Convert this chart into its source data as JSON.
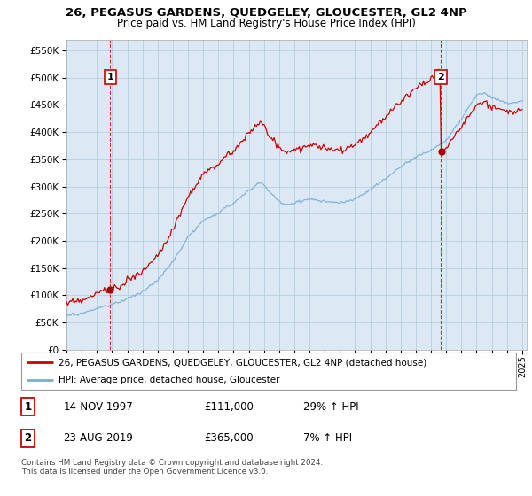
{
  "title": "26, PEGASUS GARDENS, QUEDGELEY, GLOUCESTER, GL2 4NP",
  "subtitle": "Price paid vs. HM Land Registry's House Price Index (HPI)",
  "legend_line1": "26, PEGASUS GARDENS, QUEDGELEY, GLOUCESTER, GL2 4NP (detached house)",
  "legend_line2": "HPI: Average price, detached house, Gloucester",
  "sale1_label": "1",
  "sale1_date": "14-NOV-1997",
  "sale1_price": "£111,000",
  "sale1_hpi": "29% ↑ HPI",
  "sale2_label": "2",
  "sale2_date": "23-AUG-2019",
  "sale2_price": "£365,000",
  "sale2_hpi": "7% ↑ HPI",
  "footnote": "Contains HM Land Registry data © Crown copyright and database right 2024.\nThis data is licensed under the Open Government Licence v3.0.",
  "hpi_color": "#7aadd4",
  "price_color": "#cc0000",
  "sale_dot_color": "#aa0000",
  "background_color": "#ffffff",
  "chart_bg_color": "#dce9f5",
  "grid_color": "#b8cfe0",
  "ylim_min": 0,
  "ylim_max": 570000,
  "sale1_year": 1997.875,
  "sale1_value": 111000,
  "sale2_year": 2019.64,
  "sale2_value": 365000
}
